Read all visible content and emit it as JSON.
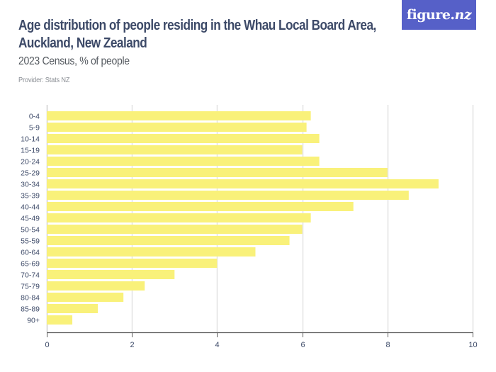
{
  "header": {
    "title_line1": "Age distribution of people residing in the Whau Local Board Area,",
    "title_line2": "Auckland, New Zealand",
    "subtitle": "2023 Census, % of people",
    "provider": "Provider: Stats NZ"
  },
  "logo": {
    "text_main": "figure.",
    "text_nz": "nz",
    "background": "#5660c8"
  },
  "colors": {
    "bar": "#f9f17a",
    "grid": "#e2e2e2",
    "axis": "#5a5a5a",
    "title": "#3d4a68"
  },
  "chart_data": {
    "type": "bar",
    "orientation": "horizontal",
    "title": "Age distribution of people residing in the Whau Local Board Area, Auckland, New Zealand",
    "subtitle": "2023 Census, % of people",
    "source": "Provider: Stats NZ",
    "xlabel": "",
    "ylabel": "",
    "xlim": [
      0,
      10
    ],
    "xticks": [
      0,
      2,
      4,
      6,
      8,
      10
    ],
    "grid": true,
    "legend": null,
    "categories": [
      "0-4",
      "5-9",
      "10-14",
      "15-19",
      "20-24",
      "25-29",
      "30-34",
      "35-39",
      "40-44",
      "45-49",
      "50-54",
      "55-59",
      "60-64",
      "65-69",
      "70-74",
      "75-79",
      "80-84",
      "85-89",
      "90+"
    ],
    "values": [
      6.2,
      6.1,
      6.4,
      6.0,
      6.4,
      8.0,
      9.2,
      8.5,
      7.2,
      6.2,
      6.0,
      5.7,
      4.9,
      4.0,
      3.0,
      2.3,
      1.8,
      1.2,
      0.6
    ]
  }
}
